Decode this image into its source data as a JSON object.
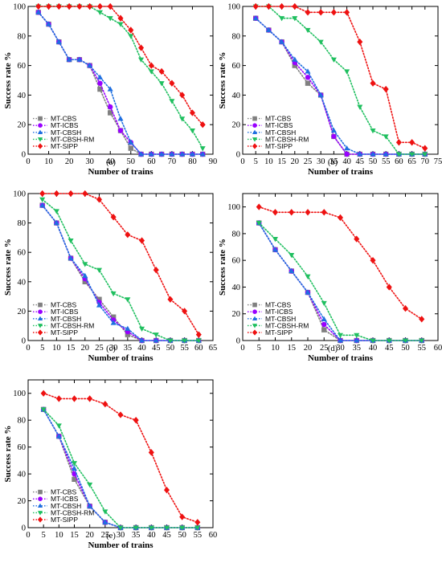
{
  "chart_data": [
    {
      "type": "line",
      "panel_label": "(a)",
      "xlabel": "Number of trains",
      "ylabel": "Success rate %",
      "xlim": [
        0,
        90
      ],
      "ylim": [
        0,
        100
      ],
      "xticks": [
        0,
        10,
        20,
        30,
        40,
        50,
        60,
        70,
        80,
        90
      ],
      "yticks": [
        0,
        20,
        40,
        60,
        80,
        100
      ],
      "legend_position": "bottom-left",
      "series": [
        {
          "name": "MT-CBS",
          "x": [
            5,
            10,
            15,
            20,
            25,
            30,
            35,
            40,
            45,
            50,
            55,
            60,
            65,
            70,
            75,
            80,
            85
          ],
          "y": [
            96,
            88,
            76,
            64,
            64,
            60,
            44,
            28,
            16,
            4,
            0,
            0,
            0,
            0,
            0,
            0,
            0
          ]
        },
        {
          "name": "MT-ICBS",
          "x": [
            5,
            10,
            15,
            20,
            25,
            30,
            35,
            40,
            45,
            50,
            55,
            60,
            65,
            70,
            75,
            80,
            85
          ],
          "y": [
            96,
            88,
            76,
            64,
            64,
            60,
            48,
            32,
            16,
            8,
            0,
            0,
            0,
            0,
            0,
            0,
            0
          ]
        },
        {
          "name": "MT-CBSH",
          "x": [
            5,
            10,
            15,
            20,
            25,
            30,
            35,
            40,
            45,
            50,
            55,
            60,
            65,
            70,
            75,
            80,
            85
          ],
          "y": [
            96,
            88,
            76,
            64,
            64,
            60,
            52,
            44,
            24,
            8,
            0,
            0,
            0,
            0,
            0,
            0,
            0
          ]
        },
        {
          "name": "MT-CBSH-RM",
          "x": [
            5,
            10,
            15,
            20,
            25,
            30,
            35,
            40,
            45,
            50,
            55,
            60,
            65,
            70,
            75,
            80,
            85
          ],
          "y": [
            100,
            100,
            100,
            100,
            100,
            100,
            96,
            92,
            88,
            80,
            64,
            56,
            48,
            36,
            24,
            16,
            4
          ]
        },
        {
          "name": "MT-SIPP",
          "x": [
            5,
            10,
            15,
            20,
            25,
            30,
            35,
            40,
            45,
            50,
            55,
            60,
            65,
            70,
            75,
            80,
            85
          ],
          "y": [
            100,
            100,
            100,
            100,
            100,
            100,
            100,
            100,
            92,
            84,
            72,
            60,
            56,
            48,
            40,
            28,
            20
          ]
        }
      ]
    },
    {
      "type": "line",
      "panel_label": "(b)",
      "xlabel": "Number of trains",
      "ylabel": "Success rate %",
      "xlim": [
        0,
        75
      ],
      "ylim": [
        0,
        100
      ],
      "xticks": [
        0,
        5,
        10,
        15,
        20,
        25,
        30,
        35,
        40,
        45,
        50,
        55,
        60,
        65,
        70,
        75
      ],
      "yticks": [
        0,
        20,
        40,
        60,
        80,
        100
      ],
      "legend_position": "bottom-left",
      "series": [
        {
          "name": "MT-CBS",
          "x": [
            5,
            10,
            15,
            20,
            25,
            30,
            35,
            40,
            45,
            50,
            55,
            60,
            65,
            70
          ],
          "y": [
            92,
            84,
            76,
            60,
            48,
            40,
            12,
            0,
            0,
            0,
            0,
            0,
            0,
            0
          ]
        },
        {
          "name": "MT-ICBS",
          "x": [
            5,
            10,
            15,
            20,
            25,
            30,
            35,
            40,
            45,
            50,
            55,
            60,
            65,
            70
          ],
          "y": [
            92,
            84,
            76,
            62,
            52,
            40,
            12,
            0,
            0,
            0,
            0,
            0,
            0,
            0
          ]
        },
        {
          "name": "MT-CBSH",
          "x": [
            5,
            10,
            15,
            20,
            25,
            30,
            35,
            40,
            45,
            50,
            55,
            60,
            65,
            70
          ],
          "y": [
            92,
            84,
            76,
            64,
            56,
            40,
            16,
            4,
            0,
            0,
            0,
            0,
            0,
            0
          ]
        },
        {
          "name": "MT-CBSH-RM",
          "x": [
            5,
            10,
            15,
            20,
            25,
            30,
            35,
            40,
            45,
            50,
            55,
            60,
            65,
            70
          ],
          "y": [
            100,
            100,
            92,
            92,
            84,
            76,
            64,
            56,
            32,
            16,
            12,
            0,
            0,
            0
          ]
        },
        {
          "name": "MT-SIPP",
          "x": [
            5,
            10,
            15,
            20,
            25,
            30,
            35,
            40,
            45,
            50,
            55,
            60,
            65,
            70
          ],
          "y": [
            100,
            100,
            100,
            100,
            96,
            96,
            96,
            96,
            76,
            48,
            44,
            8,
            8,
            4
          ]
        }
      ]
    },
    {
      "type": "line",
      "panel_label": "(c)",
      "xlabel": "Number of trains",
      "ylabel": "Success rate %",
      "xlim": [
        0,
        65
      ],
      "ylim": [
        0,
        100
      ],
      "xticks": [
        0,
        5,
        10,
        15,
        20,
        25,
        30,
        35,
        40,
        45,
        50,
        55,
        60,
        65
      ],
      "yticks": [
        0,
        20,
        40,
        60,
        80,
        100
      ],
      "legend_position": "bottom-left",
      "series": [
        {
          "name": "MT-CBS",
          "x": [
            5,
            10,
            15,
            20,
            25,
            30,
            35,
            40,
            45,
            50,
            55,
            60
          ],
          "y": [
            92,
            80,
            56,
            40,
            28,
            16,
            4,
            0,
            0,
            0,
            0,
            0
          ]
        },
        {
          "name": "MT-ICBS",
          "x": [
            5,
            10,
            15,
            20,
            25,
            30,
            35,
            40,
            45,
            50,
            55,
            60
          ],
          "y": [
            92,
            80,
            56,
            42,
            26,
            14,
            6,
            0,
            0,
            0,
            0,
            0
          ]
        },
        {
          "name": "MT-CBSH",
          "x": [
            5,
            10,
            15,
            20,
            25,
            30,
            35,
            40,
            45,
            50,
            55,
            60
          ],
          "y": [
            92,
            80,
            56,
            44,
            24,
            12,
            8,
            0,
            0,
            0,
            0,
            0
          ]
        },
        {
          "name": "MT-CBSH-RM",
          "x": [
            5,
            10,
            15,
            20,
            25,
            30,
            35,
            40,
            45,
            50,
            55,
            60
          ],
          "y": [
            96,
            88,
            68,
            52,
            48,
            32,
            28,
            8,
            4,
            0,
            0,
            0
          ]
        },
        {
          "name": "MT-SIPP",
          "x": [
            5,
            10,
            15,
            20,
            25,
            30,
            35,
            40,
            45,
            50,
            55,
            60
          ],
          "y": [
            100,
            100,
            100,
            100,
            96,
            84,
            72,
            68,
            48,
            28,
            20,
            4
          ]
        }
      ]
    },
    {
      "type": "line",
      "panel_label": "(d)",
      "xlabel": "Number of trains",
      "ylabel": "Success rate %",
      "xlim": [
        0,
        60
      ],
      "ylim": [
        0,
        110
      ],
      "xticks": [
        0,
        5,
        10,
        15,
        20,
        25,
        30,
        35,
        40,
        45,
        50,
        55,
        60
      ],
      "yticks": [
        0,
        20,
        40,
        60,
        80,
        100
      ],
      "legend_position": "bottom-left",
      "series": [
        {
          "name": "MT-CBS",
          "x": [
            5,
            10,
            15,
            20,
            25,
            30,
            35,
            40,
            45,
            50,
            55
          ],
          "y": [
            88,
            68,
            52,
            36,
            8,
            0,
            0,
            0,
            0,
            0,
            0
          ]
        },
        {
          "name": "MT-ICBS",
          "x": [
            5,
            10,
            15,
            20,
            25,
            30,
            35,
            40,
            45,
            50,
            55
          ],
          "y": [
            88,
            68,
            52,
            36,
            12,
            0,
            0,
            0,
            0,
            0,
            0
          ]
        },
        {
          "name": "MT-CBSH",
          "x": [
            5,
            10,
            15,
            20,
            25,
            30,
            35,
            40,
            45,
            50,
            55
          ],
          "y": [
            88,
            68,
            52,
            36,
            16,
            0,
            0,
            0,
            0,
            0,
            0
          ]
        },
        {
          "name": "MT-CBSH-RM",
          "x": [
            5,
            10,
            15,
            20,
            25,
            30,
            35,
            40,
            45,
            50,
            55
          ],
          "y": [
            88,
            76,
            64,
            48,
            28,
            4,
            4,
            0,
            0,
            0,
            0
          ]
        },
        {
          "name": "MT-SIPP",
          "x": [
            5,
            10,
            15,
            20,
            25,
            30,
            35,
            40,
            45,
            50,
            55
          ],
          "y": [
            100,
            96,
            96,
            96,
            96,
            92,
            76,
            60,
            40,
            24,
            16
          ]
        }
      ]
    },
    {
      "type": "line",
      "panel_label": "(e)",
      "xlabel": "Number of trains",
      "ylabel": "Success rate %",
      "xlim": [
        0,
        60
      ],
      "ylim": [
        0,
        110
      ],
      "xticks": [
        0,
        5,
        10,
        15,
        20,
        25,
        30,
        35,
        40,
        45,
        50,
        55,
        60
      ],
      "yticks": [
        0,
        20,
        40,
        60,
        80,
        100
      ],
      "legend_position": "bottom-left",
      "series": [
        {
          "name": "MT-CBS",
          "x": [
            5,
            10,
            15,
            20,
            25,
            30,
            35,
            40,
            45,
            50,
            55
          ],
          "y": [
            88,
            68,
            36,
            16,
            4,
            0,
            0,
            0,
            0,
            0,
            0
          ]
        },
        {
          "name": "MT-ICBS",
          "x": [
            5,
            10,
            15,
            20,
            25,
            30,
            35,
            40,
            45,
            50,
            55
          ],
          "y": [
            88,
            68,
            40,
            16,
            4,
            0,
            0,
            0,
            0,
            0,
            0
          ]
        },
        {
          "name": "MT-CBSH",
          "x": [
            5,
            10,
            15,
            20,
            25,
            30,
            35,
            40,
            45,
            50,
            55
          ],
          "y": [
            88,
            68,
            44,
            16,
            4,
            0,
            0,
            0,
            0,
            0,
            0
          ]
        },
        {
          "name": "MT-CBSH-RM",
          "x": [
            5,
            10,
            15,
            20,
            25,
            30,
            35,
            40,
            45,
            50,
            55
          ],
          "y": [
            88,
            76,
            48,
            32,
            12,
            0,
            0,
            0,
            0,
            0,
            0
          ]
        },
        {
          "name": "MT-SIPP",
          "x": [
            5,
            10,
            15,
            20,
            25,
            30,
            35,
            40,
            45,
            50,
            55
          ],
          "y": [
            100,
            96,
            96,
            96,
            92,
            84,
            80,
            56,
            28,
            8,
            4
          ]
        }
      ]
    }
  ],
  "series_styles": [
    {
      "name": "MT-CBS",
      "color": "#808080",
      "marker": "square"
    },
    {
      "name": "MT-ICBS",
      "color": "#9900ff",
      "marker": "circle"
    },
    {
      "name": "MT-CBSH",
      "color": "#1f6fe0",
      "marker": "triangle-up"
    },
    {
      "name": "MT-CBSH-RM",
      "color": "#1fbf5f",
      "marker": "triangle-down"
    },
    {
      "name": "MT-SIPP",
      "color": "#ee1111",
      "marker": "diamond"
    }
  ]
}
